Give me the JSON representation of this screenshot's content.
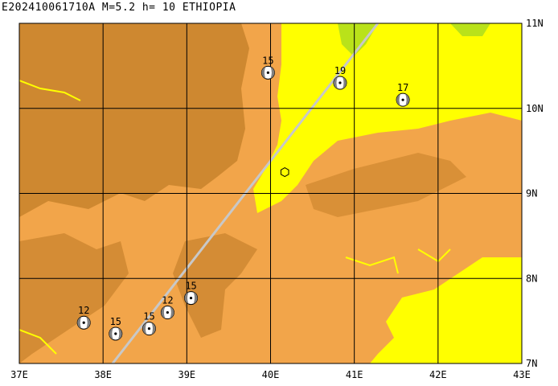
{
  "title": "E202410061710A M=5.2 h= 10 ETHIOPIA",
  "map": {
    "lon_range": [
      37,
      43
    ],
    "lat_range": [
      7,
      11
    ],
    "x_ticks": [
      "37E",
      "38E",
      "39E",
      "40E",
      "41E",
      "42E",
      "43E"
    ],
    "y_ticks": [
      "11N",
      "10N",
      "9N",
      "8N",
      "7N"
    ],
    "colors": {
      "highland_dark": "#c8822c",
      "highland": "#f2a54a",
      "lowland": "#ffff00",
      "green": "#b9e21a",
      "water": "#ffff00",
      "fault": "#c8c8c8",
      "grid": "#000000"
    }
  },
  "epicenter": {
    "lon": 40.17,
    "lat": 9.25,
    "marker": "hexagon-icon"
  },
  "events": [
    {
      "label": "15",
      "lon": 39.97,
      "lat": 10.42
    },
    {
      "label": "19",
      "lon": 40.83,
      "lat": 10.3
    },
    {
      "label": "17",
      "lon": 41.58,
      "lat": 10.1
    },
    {
      "label": "15",
      "lon": 39.05,
      "lat": 7.77
    },
    {
      "label": "12",
      "lon": 38.77,
      "lat": 7.6
    },
    {
      "label": "12",
      "lon": 37.77,
      "lat": 7.48
    },
    {
      "label": "15",
      "lon": 38.15,
      "lat": 7.35
    },
    {
      "label": "15",
      "lon": 38.55,
      "lat": 7.41
    }
  ]
}
